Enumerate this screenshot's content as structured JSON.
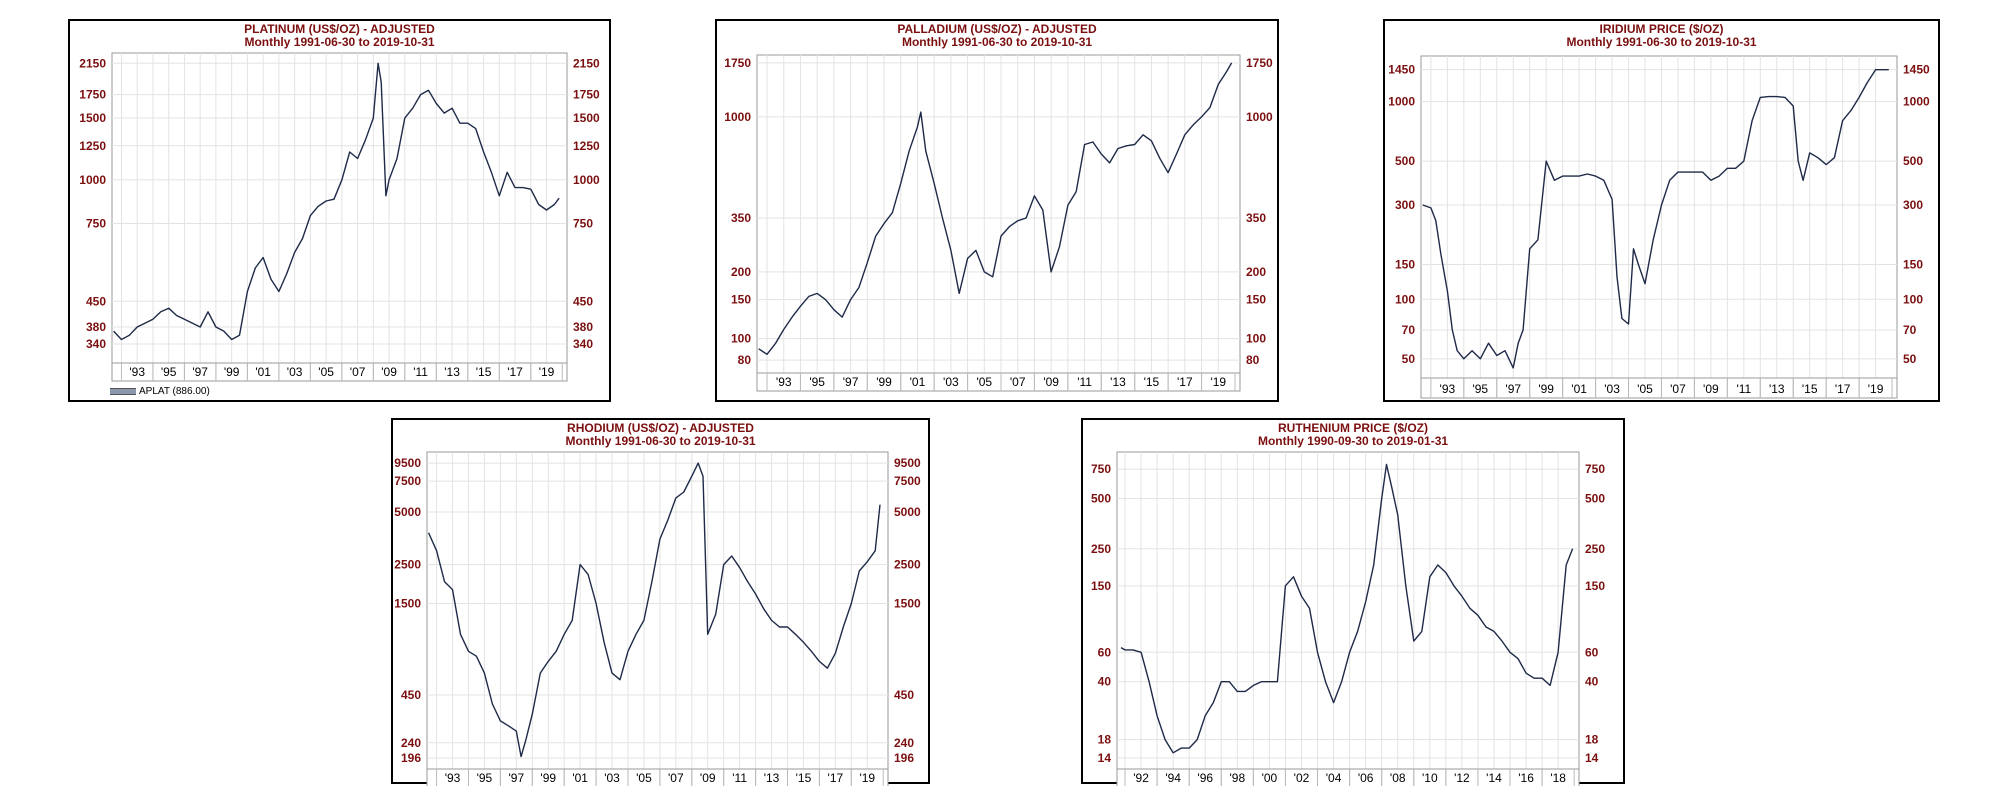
{
  "colors": {
    "title": "#7b0f0f",
    "axis_label": "#7b0f0f",
    "line": "#1e2a48",
    "grid": "#e3e3e3",
    "border": "#000000"
  },
  "chart_data": [
    {
      "type": "line",
      "scale": "log",
      "title": "PLATINUM (US$/OZ) - ADJUSTED",
      "subtitle": "Monthly  1991-06-30 to 2019-10-31",
      "xlim": [
        1991.4,
        2020.3
      ],
      "ylim": [
        300,
        2300
      ],
      "x_ticks": [
        "'93",
        "'95",
        "'97",
        "'99",
        "'01",
        "'03",
        "'05",
        "'07",
        "'09",
        "'11",
        "'13",
        "'15",
        "'17",
        "'19"
      ],
      "x_tick_years": [
        1993,
        1995,
        1997,
        1999,
        2001,
        2003,
        2005,
        2007,
        2009,
        2011,
        2013,
        2015,
        2017,
        2019
      ],
      "y_ticks": [
        340,
        380,
        450,
        750,
        1000,
        1250,
        1500,
        1750,
        2150
      ],
      "legend": "APLAT (886.00)",
      "series": [
        {
          "x": [
            1991.5,
            1992.0,
            1992.5,
            1993.0,
            1993.5,
            1994.0,
            1994.5,
            1995.0,
            1995.5,
            1996.0,
            1996.5,
            1997.0,
            1997.5,
            1998.0,
            1998.5,
            1999.0,
            1999.5,
            2000.0,
            2000.5,
            2001.0,
            2001.5,
            2002.0,
            2002.5,
            2003.0,
            2003.5,
            2004.0,
            2004.5,
            2005.0,
            2005.5,
            2006.0,
            2006.5,
            2007.0,
            2007.5,
            2008.0,
            2008.3,
            2008.5,
            2008.8,
            2009.0,
            2009.5,
            2010.0,
            2010.5,
            2011.0,
            2011.5,
            2012.0,
            2012.5,
            2013.0,
            2013.5,
            2014.0,
            2014.5,
            2015.0,
            2015.5,
            2016.0,
            2016.5,
            2017.0,
            2017.5,
            2018.0,
            2018.5,
            2019.0,
            2019.5,
            2019.8
          ],
          "y": [
            370,
            350,
            360,
            380,
            390,
            400,
            420,
            430,
            410,
            400,
            390,
            380,
            420,
            380,
            370,
            350,
            360,
            480,
            560,
            600,
            520,
            480,
            540,
            620,
            680,
            790,
            840,
            870,
            880,
            1000,
            1200,
            1150,
            1300,
            1500,
            2150,
            1900,
            900,
            1000,
            1150,
            1500,
            1600,
            1750,
            1800,
            1650,
            1550,
            1600,
            1450,
            1450,
            1400,
            1200,
            1050,
            900,
            1050,
            950,
            950,
            940,
            850,
            820,
            850,
            886
          ]
        }
      ]
    },
    {
      "type": "line",
      "scale": "log",
      "title": "PALLADIUM (US$/OZ) - ADJUSTED",
      "subtitle": "Monthly  1991-06-30 to 2019-10-31",
      "xlim": [
        1991.4,
        2020.3
      ],
      "ylim": [
        70,
        1900
      ],
      "x_ticks": [
        "'93",
        "'95",
        "'97",
        "'99",
        "'01",
        "'03",
        "'05",
        "'07",
        "'09",
        "'11",
        "'13",
        "'15",
        "'17",
        "'19"
      ],
      "x_tick_years": [
        1993,
        1995,
        1997,
        1999,
        2001,
        2003,
        2005,
        2007,
        2009,
        2011,
        2013,
        2015,
        2017,
        2019
      ],
      "y_ticks": [
        80,
        100,
        150,
        200,
        350,
        1000,
        1750
      ],
      "series": [
        {
          "x": [
            1991.5,
            1992.0,
            1992.5,
            1993.0,
            1993.5,
            1994.0,
            1994.5,
            1995.0,
            1995.5,
            1996.0,
            1996.5,
            1997.0,
            1997.5,
            1998.0,
            1998.5,
            1999.0,
            1999.5,
            2000.0,
            2000.5,
            2001.0,
            2001.2,
            2001.5,
            2002.0,
            2002.5,
            2003.0,
            2003.5,
            2004.0,
            2004.5,
            2005.0,
            2005.5,
            2006.0,
            2006.5,
            2007.0,
            2007.5,
            2008.0,
            2008.5,
            2009.0,
            2009.5,
            2010.0,
            2010.5,
            2011.0,
            2011.5,
            2012.0,
            2012.5,
            2013.0,
            2013.5,
            2014.0,
            2014.5,
            2015.0,
            2015.5,
            2016.0,
            2016.5,
            2017.0,
            2017.5,
            2018.0,
            2018.5,
            2019.0,
            2019.5,
            2019.8
          ],
          "y": [
            90,
            85,
            95,
            110,
            125,
            140,
            155,
            160,
            150,
            135,
            125,
            150,
            170,
            220,
            290,
            330,
            370,
            500,
            700,
            900,
            1050,
            700,
            500,
            350,
            250,
            160,
            230,
            250,
            200,
            190,
            290,
            320,
            340,
            350,
            440,
            380,
            200,
            260,
            400,
            460,
            750,
            770,
            680,
            620,
            720,
            740,
            750,
            830,
            780,
            650,
            560,
            680,
            830,
            920,
            1000,
            1100,
            1400,
            1600,
            1750
          ]
        }
      ]
    },
    {
      "type": "line",
      "scale": "log",
      "title": "IRIDIUM PRICE ($/OZ)",
      "subtitle": "Monthly  1991-06-30 to 2019-10-31",
      "xlim": [
        1991.4,
        2020.3
      ],
      "ylim": [
        40,
        1700
      ],
      "x_ticks": [
        "'93",
        "'95",
        "'97",
        "'99",
        "'01",
        "'03",
        "'05",
        "'07",
        "'09",
        "'11",
        "'13",
        "'15",
        "'17",
        "'19"
      ],
      "x_tick_years": [
        1993,
        1995,
        1997,
        1999,
        2001,
        2003,
        2005,
        2007,
        2009,
        2011,
        2013,
        2015,
        2017,
        2019
      ],
      "y_ticks": [
        50,
        70,
        100,
        150,
        300,
        500,
        1000,
        1450
      ],
      "series": [
        {
          "x": [
            1991.5,
            1992.0,
            1992.3,
            1992.6,
            1993.0,
            1993.3,
            1993.6,
            1994.0,
            1994.5,
            1995.0,
            1995.5,
            1996.0,
            1996.5,
            1997.0,
            1997.3,
            1997.6,
            1998.0,
            1998.5,
            1999.0,
            1999.5,
            2000.0,
            2000.5,
            2001.0,
            2001.5,
            2002.0,
            2002.5,
            2003.0,
            2003.3,
            2003.6,
            2004.0,
            2004.3,
            2004.6,
            2005.0,
            2005.5,
            2006.0,
            2006.5,
            2007.0,
            2007.5,
            2008.0,
            2008.5,
            2009.0,
            2009.5,
            2010.0,
            2010.5,
            2011.0,
            2011.5,
            2012.0,
            2012.5,
            2013.0,
            2013.5,
            2014.0,
            2014.3,
            2014.6,
            2015.0,
            2015.5,
            2016.0,
            2016.5,
            2017.0,
            2017.5,
            2018.0,
            2018.5,
            2019.0,
            2019.5,
            2019.8
          ],
          "y": [
            300,
            290,
            250,
            170,
            110,
            70,
            55,
            50,
            55,
            50,
            60,
            52,
            55,
            45,
            60,
            70,
            180,
            200,
            500,
            400,
            420,
            420,
            420,
            430,
            420,
            400,
            320,
            130,
            80,
            75,
            180,
            150,
            120,
            200,
            300,
            400,
            440,
            440,
            440,
            440,
            400,
            420,
            460,
            460,
            500,
            800,
            1050,
            1060,
            1060,
            1050,
            950,
            500,
            400,
            550,
            520,
            480,
            520,
            800,
            900,
            1050,
            1250,
            1450,
            1450,
            1450
          ]
        }
      ]
    },
    {
      "type": "line",
      "scale": "log",
      "title": "RHODIUM (US$/OZ) - ADJUSTED",
      "subtitle": "Monthly  1991-06-30 to 2019-10-31",
      "xlim": [
        1991.4,
        2020.3
      ],
      "ylim": [
        170,
        11000
      ],
      "x_ticks": [
        "'93",
        "'95",
        "'97",
        "'99",
        "'01",
        "'03",
        "'05",
        "'07",
        "'09",
        "'11",
        "'13",
        "'15",
        "'17",
        "'19"
      ],
      "x_tick_years": [
        1993,
        1995,
        1997,
        1999,
        2001,
        2003,
        2005,
        2007,
        2009,
        2011,
        2013,
        2015,
        2017,
        2019
      ],
      "y_ticks": [
        196,
        240,
        450,
        1500,
        2500,
        5000,
        7500,
        9500
      ],
      "series": [
        {
          "x": [
            1991.5,
            1992.0,
            1992.5,
            1993.0,
            1993.5,
            1994.0,
            1994.5,
            1995.0,
            1995.5,
            1996.0,
            1996.5,
            1997.0,
            1997.3,
            1997.6,
            1998.0,
            1998.5,
            1999.0,
            1999.5,
            2000.0,
            2000.5,
            2001.0,
            2001.5,
            2002.0,
            2002.5,
            2003.0,
            2003.5,
            2004.0,
            2004.5,
            2005.0,
            2005.5,
            2006.0,
            2006.5,
            2007.0,
            2007.5,
            2008.0,
            2008.4,
            2008.7,
            2009.0,
            2009.5,
            2010.0,
            2010.5,
            2011.0,
            2011.5,
            2012.0,
            2012.5,
            2013.0,
            2013.5,
            2014.0,
            2014.5,
            2015.0,
            2015.5,
            2016.0,
            2016.5,
            2017.0,
            2017.5,
            2018.0,
            2018.5,
            2019.0,
            2019.5,
            2019.8
          ],
          "y": [
            3800,
            3000,
            2000,
            1800,
            1000,
            800,
            750,
            600,
            400,
            320,
            300,
            280,
            200,
            250,
            350,
            600,
            700,
            800,
            1000,
            1200,
            2500,
            2200,
            1500,
            900,
            600,
            550,
            800,
            1000,
            1200,
            2000,
            3500,
            4500,
            6000,
            6500,
            8000,
            9500,
            8000,
            1000,
            1300,
            2500,
            2800,
            2400,
            2000,
            1700,
            1400,
            1200,
            1100,
            1100,
            1000,
            900,
            800,
            700,
            640,
            780,
            1100,
            1500,
            2300,
            2600,
            3000,
            5500
          ]
        }
      ]
    },
    {
      "type": "line",
      "scale": "log",
      "title": "RUTHENIUM PRICE ($/OZ)",
      "subtitle": "Monthly  1990-09-30 to 2019-01-31",
      "xlim": [
        1990.5,
        2019.3
      ],
      "ylim": [
        12,
        950
      ],
      "x_ticks": [
        "'92",
        "'94",
        "'96",
        "'98",
        "'00",
        "'02",
        "'04",
        "'06",
        "'08",
        "'10",
        "'12",
        "'14",
        "'16",
        "'18"
      ],
      "x_tick_years": [
        1992,
        1994,
        1996,
        1998,
        2000,
        2002,
        2004,
        2006,
        2008,
        2010,
        2012,
        2014,
        2016,
        2018
      ],
      "y_ticks": [
        14,
        18,
        40,
        60,
        150,
        250,
        500,
        750
      ],
      "series": [
        {
          "x": [
            1990.75,
            1991.0,
            1991.5,
            1992.0,
            1992.5,
            1993.0,
            1993.5,
            1994.0,
            1994.5,
            1995.0,
            1995.5,
            1996.0,
            1996.5,
            1997.0,
            1997.5,
            1998.0,
            1998.5,
            1999.0,
            1999.5,
            2000.0,
            2000.5,
            2001.0,
            2001.5,
            2002.0,
            2002.5,
            2003.0,
            2003.5,
            2004.0,
            2004.5,
            2005.0,
            2005.5,
            2006.0,
            2006.5,
            2007.0,
            2007.3,
            2007.6,
            2008.0,
            2008.5,
            2009.0,
            2009.5,
            2010.0,
            2010.5,
            2011.0,
            2011.5,
            2012.0,
            2012.5,
            2013.0,
            2013.5,
            2014.0,
            2014.5,
            2015.0,
            2015.5,
            2016.0,
            2016.5,
            2017.0,
            2017.5,
            2018.0,
            2018.5,
            2018.9
          ],
          "y": [
            64,
            62,
            62,
            60,
            40,
            25,
            18,
            15,
            16,
            16,
            18,
            25,
            30,
            40,
            40,
            35,
            35,
            38,
            40,
            40,
            40,
            150,
            170,
            130,
            110,
            60,
            40,
            30,
            40,
            60,
            80,
            120,
            200,
            500,
            800,
            600,
            400,
            150,
            70,
            80,
            170,
            200,
            180,
            150,
            130,
            110,
            100,
            85,
            80,
            70,
            60,
            55,
            45,
            42,
            42,
            38,
            60,
            200,
            250
          ]
        }
      ]
    }
  ]
}
